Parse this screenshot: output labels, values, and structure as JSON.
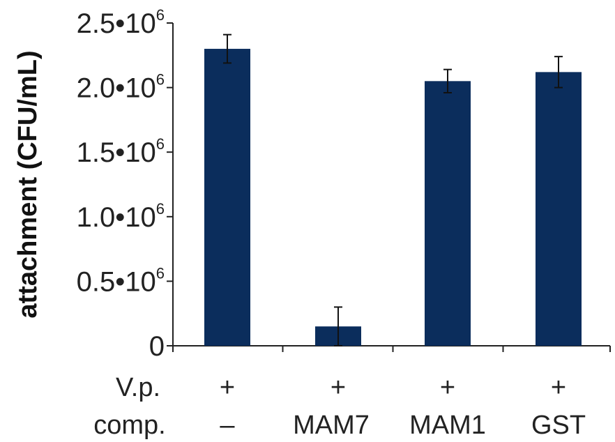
{
  "chart_data": {
    "type": "bar",
    "ylabel": "attachment (CFU/mL)",
    "ylim": [
      0,
      2500000
    ],
    "yticks": [
      {
        "value": 0,
        "label": "0",
        "exp": ""
      },
      {
        "value": 500000,
        "label": "0.5•10",
        "exp": "6"
      },
      {
        "value": 1000000,
        "label": "1.0•10",
        "exp": "6"
      },
      {
        "value": 1500000,
        "label": "1.5•10",
        "exp": "6"
      },
      {
        "value": 2000000,
        "label": "2.0•10",
        "exp": "6"
      },
      {
        "value": 2500000,
        "label": "2.5•10",
        "exp": "6"
      }
    ],
    "row_labels": [
      "V.p.",
      "comp."
    ],
    "categories": [
      {
        "vp": "+",
        "comp": "–"
      },
      {
        "vp": "+",
        "comp": "MAM7"
      },
      {
        "vp": "+",
        "comp": "MAM1"
      },
      {
        "vp": "+",
        "comp": "GST"
      }
    ],
    "values": [
      2300000,
      150000,
      2050000,
      2120000
    ],
    "errors": [
      110000,
      150000,
      90000,
      120000
    ],
    "bar_color": "#0b2d5c",
    "grid": false,
    "legend": "none"
  }
}
